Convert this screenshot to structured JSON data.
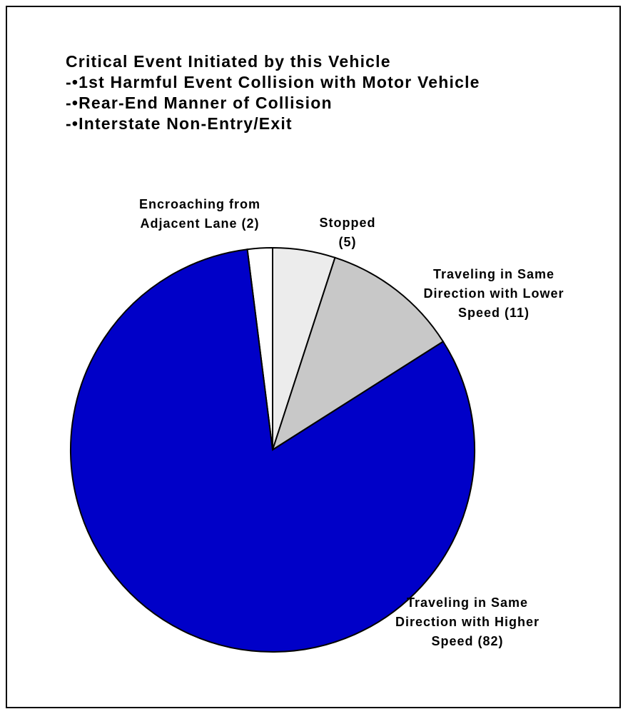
{
  "chart_data": {
    "type": "pie",
    "title": [
      "Critical Event Initiated by this Vehicle",
      "-•1st Harmful Event Collision with Motor Vehicle",
      "-•Rear-End Manner of Collision",
      "-•Interstate Non-Entry/Exit"
    ],
    "slices": [
      {
        "label_lines": [
          "Encroaching from",
          "Adjacent Lane (2)"
        ],
        "value": 2,
        "color": "#ffffff"
      },
      {
        "label_lines": [
          "Stopped",
          "(5)"
        ],
        "value": 5,
        "color": "#ececec"
      },
      {
        "label_lines": [
          "Traveling in Same",
          "Direction with Lower",
          "Speed (11)"
        ],
        "value": 11,
        "color": "#c8c8c8"
      },
      {
        "label_lines": [
          "Traveling in Same",
          "Direction with Higher",
          "Speed (82)"
        ],
        "value": 82,
        "color": "#0000c8"
      }
    ]
  }
}
